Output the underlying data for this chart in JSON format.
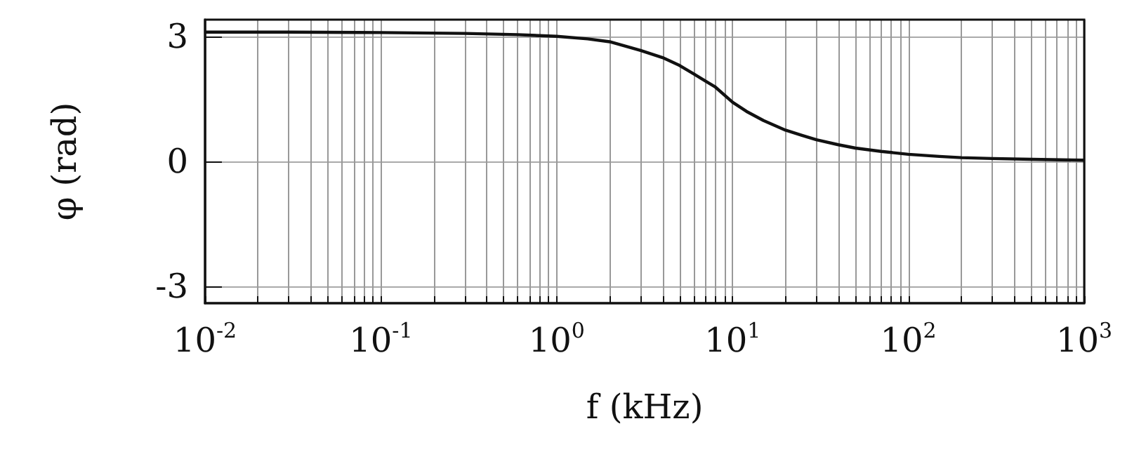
{
  "chart_data": {
    "type": "line",
    "xlabel": "f (kHz)",
    "ylabel": "φ (rad)",
    "x": [
      0.01,
      0.03,
      0.1,
      0.3,
      0.6,
      1,
      1.5,
      2,
      3,
      4,
      5,
      6,
      7,
      8,
      10,
      12,
      15,
      20,
      25,
      30,
      40,
      50,
      70,
      100,
      150,
      200,
      300,
      500,
      1000
    ],
    "series": [
      {
        "color": "#111111",
        "values": [
          3.1,
          3.1,
          3.09,
          3.07,
          3.04,
          3.0,
          2.94,
          2.87,
          2.66,
          2.49,
          2.3,
          2.1,
          1.93,
          1.78,
          1.42,
          1.2,
          0.98,
          0.75,
          0.62,
          0.52,
          0.4,
          0.32,
          0.24,
          0.17,
          0.12,
          0.09,
          0.07,
          0.05,
          0.03
        ]
      }
    ],
    "log": "x",
    "xlim": [
      0.01,
      1000
    ],
    "ylim": [
      -3.4,
      3.4
    ],
    "xticks": [
      {
        "value": 0.01,
        "label": "10$^{-2}$"
      },
      {
        "value": 0.1,
        "label": "10$^{-1}$"
      },
      {
        "value": 1,
        "label": "10$^{0}$"
      },
      {
        "value": 10,
        "label": "10$^{1}$"
      },
      {
        "value": 100,
        "label": "10$^{2}$"
      },
      {
        "value": 1000,
        "label": "10$^{3}$"
      }
    ],
    "yticks": [
      -3,
      0,
      3
    ],
    "grid": true,
    "marker": "none",
    "line_style": "solid"
  }
}
